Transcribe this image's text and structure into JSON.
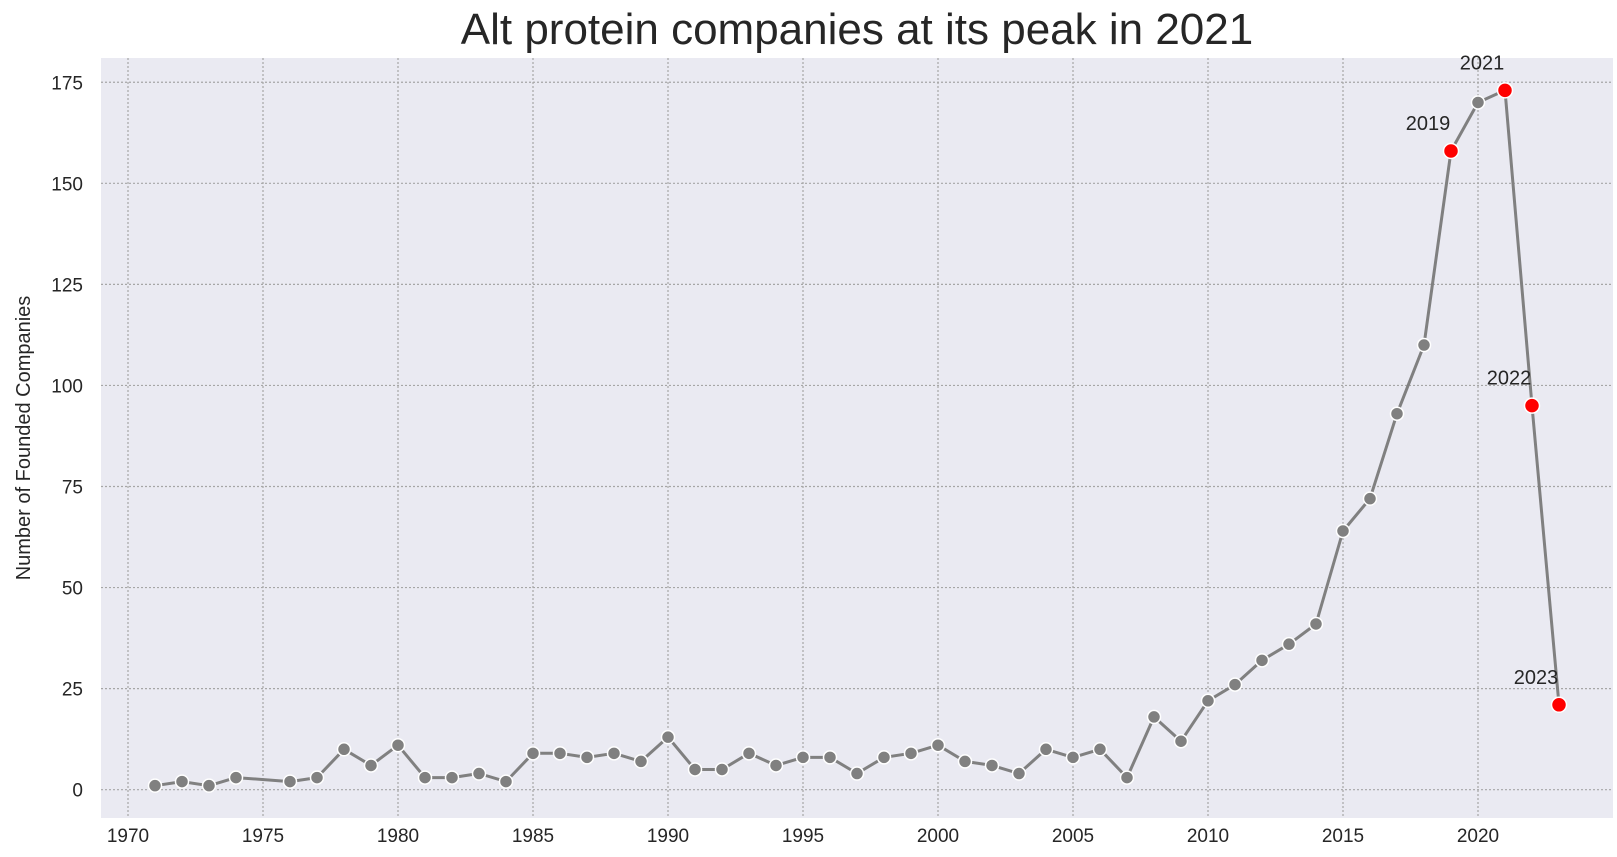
{
  "chart_data": {
    "type": "line",
    "title": "Alt protein companies at its peak in 2021",
    "xlabel": "",
    "ylabel": "Number of Founded Companies",
    "xlim": [
      1969,
      2025
    ],
    "ylim": [
      -7,
      181
    ],
    "xticks": [
      1970,
      1975,
      1980,
      1985,
      1990,
      1995,
      2000,
      2005,
      2010,
      2015,
      2020
    ],
    "yticks": [
      0,
      25,
      50,
      75,
      100,
      125,
      150,
      175
    ],
    "grid": true,
    "grid_style": "dotted",
    "series": [
      {
        "color": "#808080",
        "x": [
          1971,
          1972,
          1973,
          1974,
          1976,
          1977,
          1978,
          1979,
          1980,
          1981,
          1982,
          1983,
          1984,
          1985,
          1986,
          1987,
          1988,
          1989,
          1990,
          1991,
          1992,
          1993,
          1994,
          1995,
          1996,
          1997,
          1998,
          1999,
          2000,
          2001,
          2002,
          2003,
          2004,
          2005,
          2006,
          2007,
          2008,
          2009,
          2010,
          2011,
          2012,
          2013,
          2014,
          2015,
          2016,
          2017,
          2018,
          2019,
          2020,
          2021,
          2022,
          2023
        ],
        "y": [
          1,
          2,
          1,
          3,
          2,
          3,
          10,
          6,
          11,
          3,
          3,
          4,
          2,
          9,
          9,
          8,
          9,
          7,
          13,
          5,
          5,
          9,
          6,
          8,
          8,
          4,
          8,
          9,
          11,
          7,
          6,
          4,
          10,
          8,
          10,
          3,
          18,
          12,
          22,
          26,
          32,
          36,
          41,
          64,
          72,
          93,
          110,
          158,
          170,
          173,
          95,
          21
        ]
      }
    ],
    "highlights": [
      {
        "x": 2019,
        "y": 158,
        "label": "2019",
        "color": "#ff0000"
      },
      {
        "x": 2021,
        "y": 173,
        "label": "2021",
        "color": "#ff0000"
      },
      {
        "x": 2022,
        "y": 95,
        "label": "2022",
        "color": "#ff0000"
      },
      {
        "x": 2023,
        "y": 21,
        "label": "2023",
        "color": "#ff0000"
      }
    ],
    "colors": {
      "plot_background": "#eaeaf2",
      "grid": "#a6a6a6",
      "line": "#808080",
      "marker_edge": "#ffffff",
      "highlight": "#ff0000",
      "text": "#262626"
    }
  }
}
